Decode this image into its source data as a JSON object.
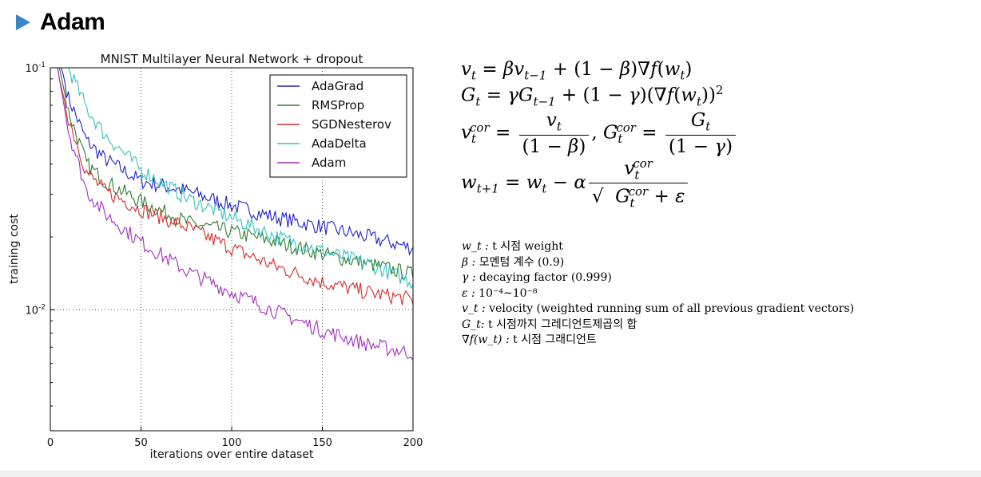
{
  "header": {
    "title": "Adam"
  },
  "formulas": {
    "line1": "v_t = βv_{t−1} + (1 − β)∇f(w_t)",
    "line2": "G_t = γG_{t−1} + (1 − γ)(∇f(w_t))^2",
    "line3": "v_t^cor = v_t / (1 − β),  G_t^cor = G_t / (1 − γ)",
    "line4": "w_{t+1} = w_t − α v_t^cor / √(G_t^cor + ε)"
  },
  "definitions": [
    {
      "symbol": "w_t :",
      "text": "t 시점 weight"
    },
    {
      "symbol": "β :",
      "text": "모멘텀 계수 (0.9)"
    },
    {
      "symbol": "γ :",
      "text": "decaying factor (0.999)"
    },
    {
      "symbol": "ε :",
      "text": "10⁻⁴~10⁻⁸"
    },
    {
      "symbol": "v_t :",
      "text": "velocity (weighted running sum of all previous gradient vectors)"
    },
    {
      "symbol": "G_t:",
      "text": "t 시점까지 그레디언트제곱의 합"
    },
    {
      "symbol": "∇f(w_t) :",
      "text": "t 시점 그래디언트"
    }
  ],
  "chart_data": {
    "type": "line",
    "title": "MNIST Multilayer Neural Network + dropout",
    "xlabel": "iterations over entire dataset",
    "ylabel": "training cost",
    "xlim": [
      0,
      200
    ],
    "ylim_log10": [
      -2.5,
      -1
    ],
    "y_scale": "log",
    "x_ticks": [
      "0",
      "50",
      "100",
      "150",
      "200"
    ],
    "y_ticks": [
      {
        "base": "10",
        "exp": "-1"
      },
      {
        "base": "10",
        "exp": "-2"
      }
    ],
    "grid": true,
    "legend_position": "top-right",
    "series": [
      {
        "name": "AdaGrad",
        "color": "#2020c8",
        "x": [
          1,
          5,
          10,
          20,
          30,
          50,
          75,
          100,
          125,
          150,
          175,
          200
        ],
        "y": [
          0.2,
          0.11,
          0.075,
          0.05,
          0.042,
          0.034,
          0.031,
          0.027,
          0.024,
          0.022,
          0.02,
          0.018
        ]
      },
      {
        "name": "RMSProp",
        "color": "#2e7d2e",
        "x": [
          1,
          5,
          10,
          20,
          30,
          50,
          75,
          100,
          125,
          150,
          175,
          200
        ],
        "y": [
          0.2,
          0.1,
          0.066,
          0.04,
          0.034,
          0.028,
          0.023,
          0.021,
          0.019,
          0.017,
          0.0155,
          0.014
        ]
      },
      {
        "name": "SGDNesterov",
        "color": "#d42a2a",
        "x": [
          1,
          5,
          10,
          20,
          30,
          50,
          75,
          100,
          125,
          150,
          175,
          200
        ],
        "y": [
          0.18,
          0.09,
          0.062,
          0.037,
          0.031,
          0.026,
          0.022,
          0.018,
          0.015,
          0.013,
          0.0118,
          0.011
        ]
      },
      {
        "name": "AdaDelta",
        "color": "#35c0c0",
        "x": [
          1,
          5,
          10,
          20,
          30,
          50,
          75,
          100,
          125,
          150,
          175,
          200
        ],
        "y": [
          0.3,
          0.15,
          0.1,
          0.068,
          0.053,
          0.038,
          0.029,
          0.024,
          0.02,
          0.0175,
          0.0155,
          0.013
        ]
      },
      {
        "name": "Adam",
        "color": "#a030c0",
        "x": [
          1,
          5,
          10,
          20,
          30,
          50,
          75,
          100,
          125,
          150,
          175,
          200
        ],
        "y": [
          0.2,
          0.09,
          0.055,
          0.031,
          0.025,
          0.019,
          0.0145,
          0.0118,
          0.0098,
          0.0082,
          0.0072,
          0.0066
        ]
      }
    ]
  }
}
